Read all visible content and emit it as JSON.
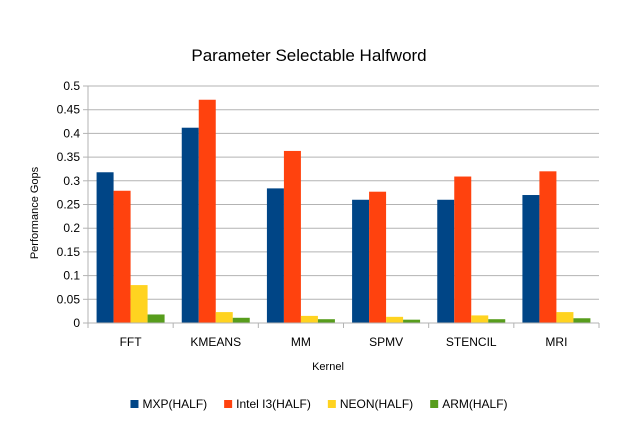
{
  "chart_data": {
    "type": "bar",
    "title": "Parameter Selectable Halfword",
    "xlabel": "Kernel",
    "ylabel": "Performance Gops",
    "ylim": [
      0,
      0.5
    ],
    "yticks": [
      "0",
      "0.05",
      "0.1",
      "0.15",
      "0.2",
      "0.25",
      "0.3",
      "0.35",
      "0.4",
      "0.45",
      "0.5"
    ],
    "grid": "horizontal",
    "legend": "bottom",
    "categories": [
      "FFT",
      "KMEANS",
      "MM",
      "SPMV",
      "STENCIL",
      "MRI"
    ],
    "series": [
      {
        "name": "MXP(HALF)",
        "color": "#004586",
        "values": [
          0.318,
          0.412,
          0.284,
          0.26,
          0.26,
          0.27
        ]
      },
      {
        "name": "Intel I3(HALF)",
        "color": "#ff420e",
        "values": [
          0.279,
          0.471,
          0.363,
          0.277,
          0.309,
          0.32
        ]
      },
      {
        "name": "NEON(HALF)",
        "color": "#ffd320",
        "values": [
          0.08,
          0.023,
          0.015,
          0.013,
          0.016,
          0.023
        ]
      },
      {
        "name": "ARM(HALF)",
        "color": "#579d1c",
        "values": [
          0.018,
          0.011,
          0.008,
          0.007,
          0.008,
          0.01
        ]
      }
    ]
  }
}
